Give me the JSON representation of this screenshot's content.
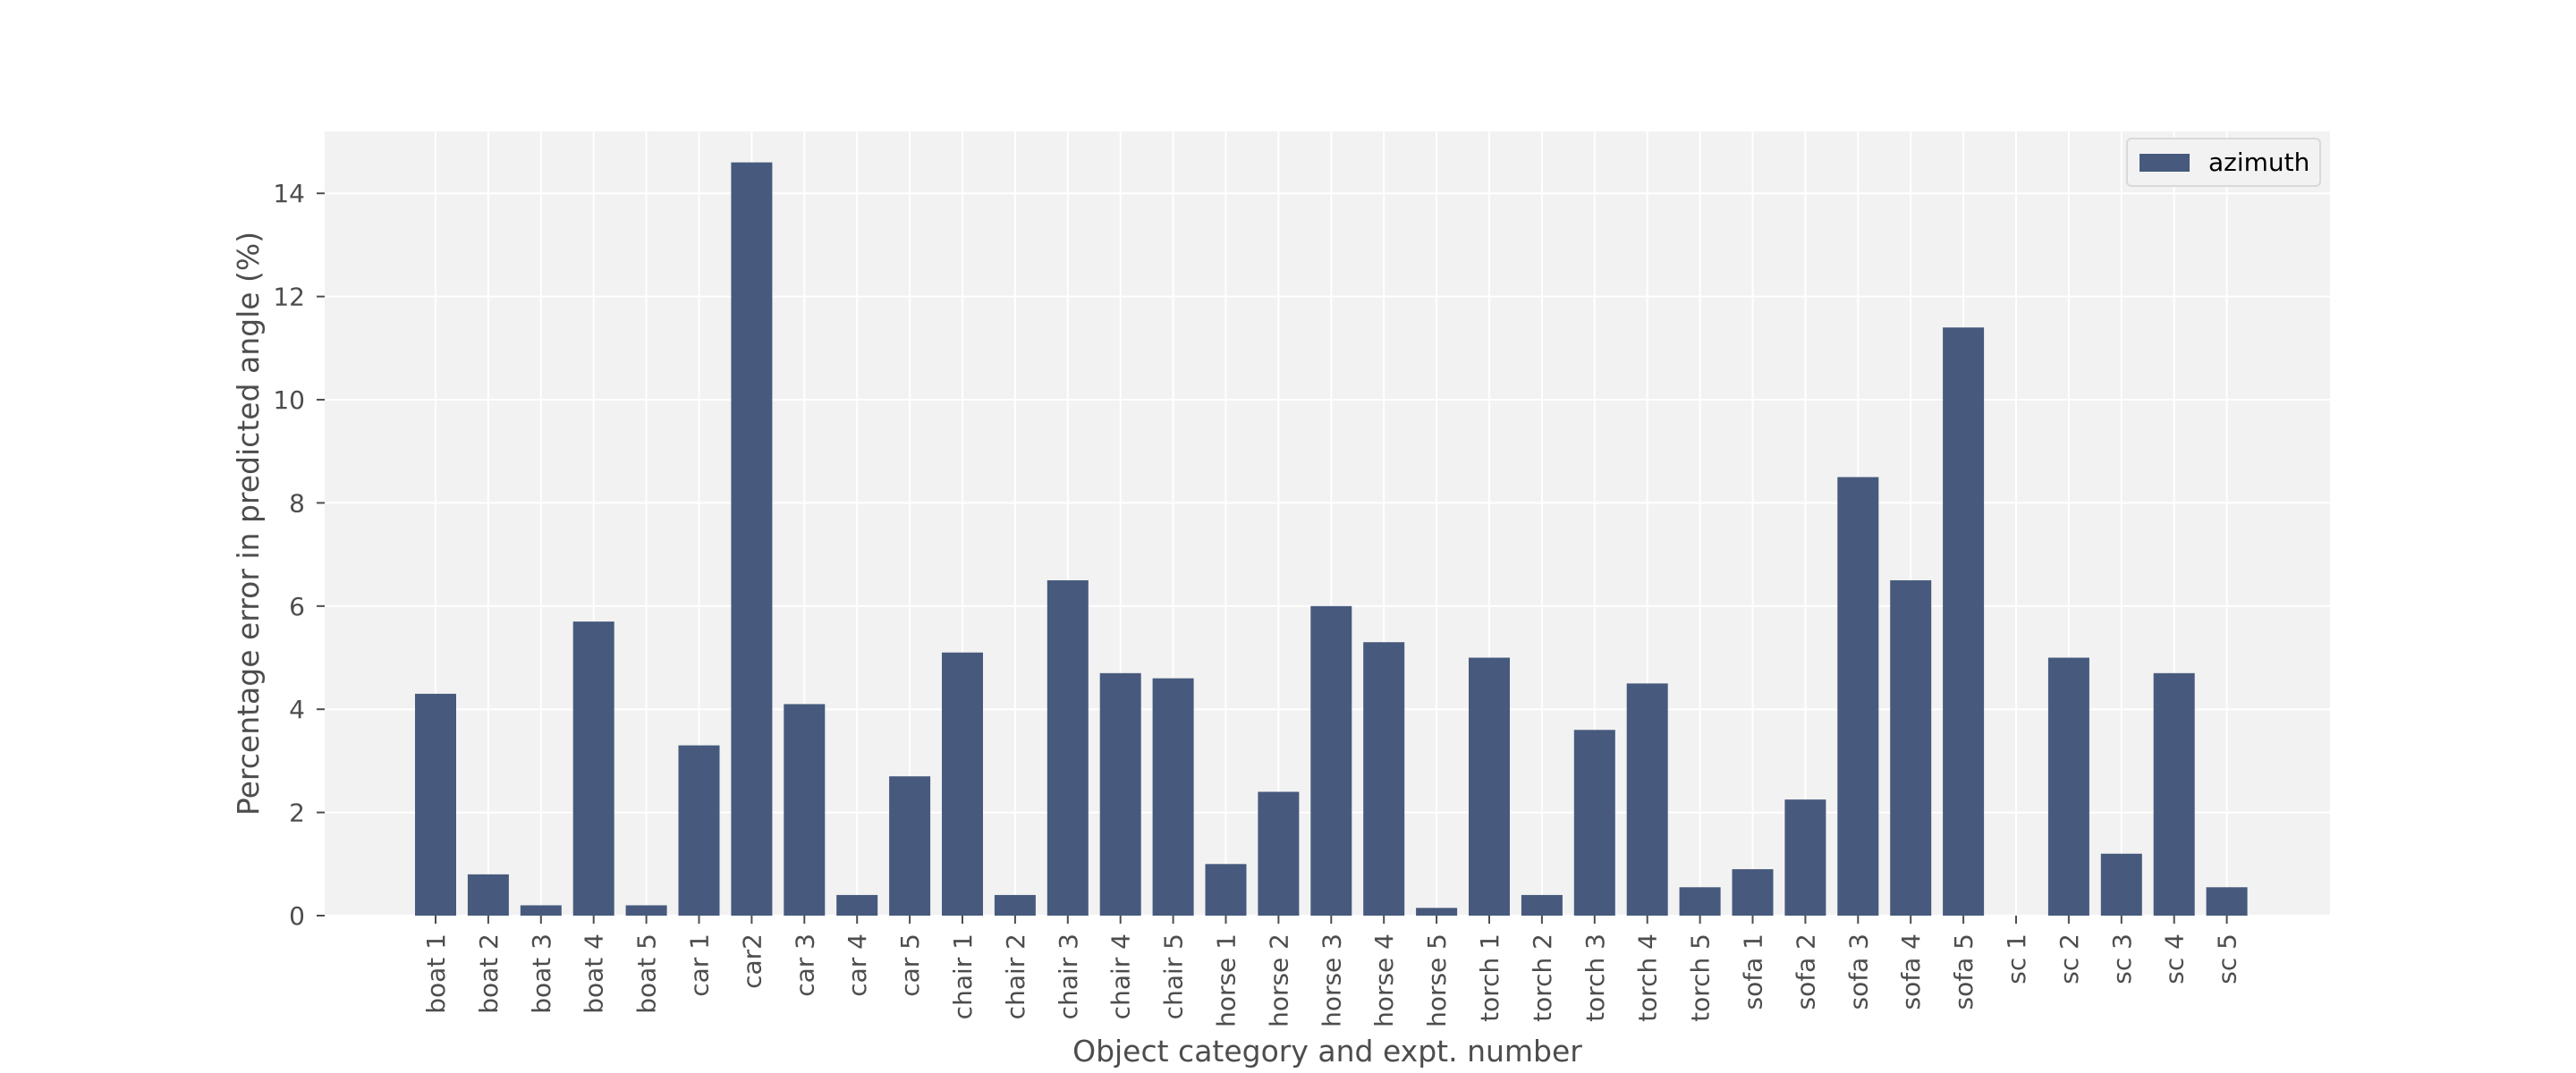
{
  "chart_data": {
    "type": "bar",
    "categories": [
      "boat 1",
      "boat 2",
      "boat 3",
      "boat 4",
      "boat 5",
      "car 1",
      "car2",
      "car 3",
      "car 4",
      "car 5",
      "chair 1",
      "chair 2",
      "chair 3",
      "chair 4",
      "chair 5",
      "horse 1",
      "horse 2",
      "horse 3",
      "horse 4",
      "horse 5",
      "torch 1",
      "torch 2",
      "torch 3",
      "torch 4",
      "torch 5",
      "sofa 1",
      "sofa 2",
      "sofa 3",
      "sofa 4",
      "sofa 5",
      "sc 1",
      "sc 2",
      "sc 3",
      "sc 4",
      "sc 5"
    ],
    "series": [
      {
        "name": "azimuth",
        "color": "#475a7d",
        "values": [
          4.3,
          0.8,
          0.2,
          5.7,
          0.2,
          3.3,
          14.6,
          4.1,
          0.4,
          2.7,
          5.1,
          0.4,
          6.5,
          4.7,
          4.6,
          1.0,
          2.4,
          6.0,
          5.3,
          0.15,
          5.0,
          0.4,
          3.6,
          4.5,
          0.55,
          0.9,
          2.25,
          8.5,
          6.5,
          11.4,
          0.0,
          5.0,
          1.2,
          4.7,
          0.55
        ]
      }
    ],
    "title": "",
    "xlabel": "Object category and expt. number",
    "ylabel": "Percentage error in predicted angle (%)",
    "ylim": [
      0,
      15.2
    ],
    "yticks": [
      0,
      2,
      4,
      6,
      8,
      10,
      12,
      14
    ],
    "grid": true,
    "legend": "upper right",
    "background": "#f2f2f2",
    "grid_color": "#ffffff"
  }
}
